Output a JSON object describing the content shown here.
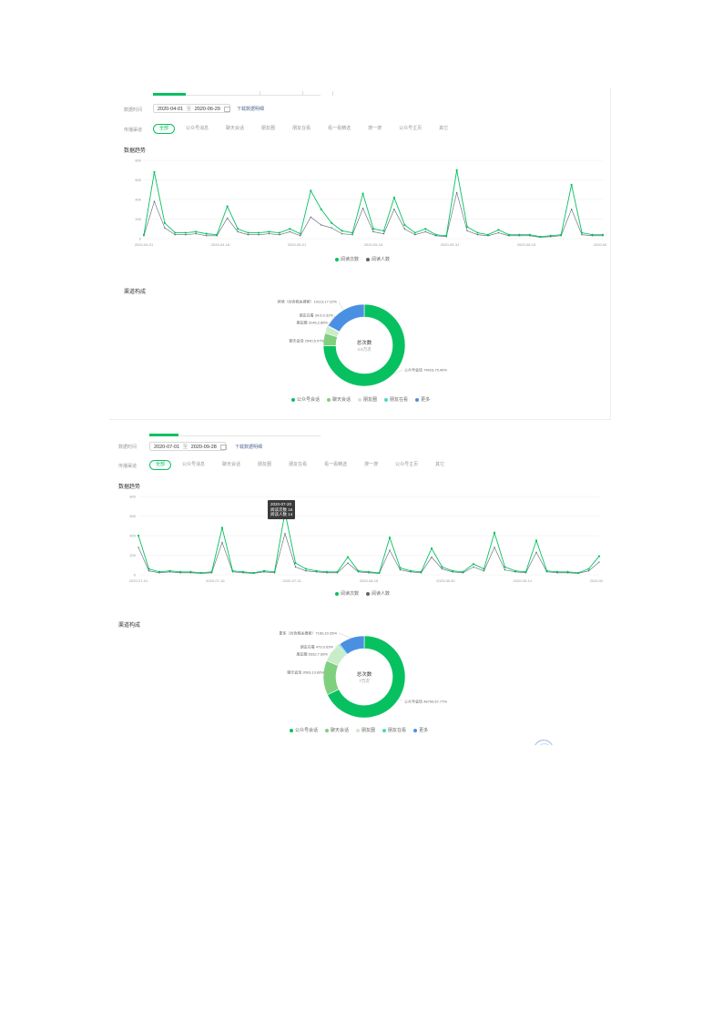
{
  "colors": {
    "accent": "#07c160",
    "line_pv": "#07c160",
    "line_uv": "#5a6476",
    "donut_main": "#07c160",
    "donut_chat": "#7ed07e",
    "donut_moments": "#c9ecc9",
    "donut_ms": "#4dd6c6",
    "donut_more": "#4a90e2",
    "link": "#576b95"
  },
  "icons": {
    "calendar": "calendar-icon",
    "float": "floating-help-icon"
  },
  "panels": [
    {
      "time_label": "数据时间",
      "date_start": "2020-04-01",
      "date_sep": "至",
      "date_end": "2020-06-29",
      "download": "下载数据明细",
      "channel_label": "传播渠道",
      "channels": [
        "全部",
        "公众号消息",
        "聊天会话",
        "朋友圈",
        "朋友在看",
        "看一看精选",
        "搜一搜",
        "公众号主页",
        "其它"
      ],
      "trend_title": "数据趋势",
      "legend": [
        "阅读次数",
        "阅读人数"
      ],
      "channel_title": "渠道构成",
      "donut_center_title": "总次数",
      "donut_center_value": "4.6万次",
      "donut_labels": [
        "其他（共含相关搜索）10113,17.22%",
        "朋友在看 34.6,0.32%",
        "朋友圈 3146,2.86%",
        "聊天会话 2540,5.07%",
        "公众号会话 74923,75.49%"
      ],
      "donut_legend": [
        "公众号会话",
        "聊天会话",
        "朋友圈",
        "朋友在看",
        "更多"
      ]
    },
    {
      "time_label": "数据时间",
      "date_start": "2020-07-01",
      "date_sep": "至",
      "date_end": "2020-09-28",
      "download": "下载数据明细",
      "channel_label": "传播渠道",
      "channels": [
        "全部",
        "公众号消息",
        "聊天会话",
        "朋友圈",
        "朋友在看",
        "看一看精选",
        "搜一搜",
        "公众号主页",
        "其它"
      ],
      "trend_title": "数据趋势",
      "legend": [
        "阅读次数",
        "阅读人数"
      ],
      "channel_title": "渠道构成",
      "donut_center_title": "总次数",
      "donut_center_value": "7万次",
      "donut_labels": [
        "更多（共含相关搜索）7160,10.26%",
        "朋友在看 473,0.63%",
        "朋友圈 5332,7.66%",
        "聊天会话 9503,13.66%",
        "公众号会话 48750,67.77%"
      ],
      "donut_legend": [
        "公众号会话",
        "聊天会话",
        "朋友圈",
        "朋友在看",
        "更多"
      ],
      "tooltip": {
        "date": "2020-07-20",
        "pv": "阅读次数 16",
        "uv": "阅读人数 14"
      }
    }
  ],
  "chart_data": [
    {
      "type": "line",
      "x": [
        "2020-04-01",
        "2020-04-03",
        "2020-04-05",
        "2020-04-07",
        "2020-04-09",
        "2020-04-11",
        "2020-04-13",
        "2020-04-15",
        "2020-04-17",
        "2020-04-19",
        "2020-04-21",
        "2020-04-23",
        "2020-04-25",
        "2020-04-27",
        "2020-04-29",
        "2020-05-01",
        "2020-05-03",
        "2020-05-05",
        "2020-05-07",
        "2020-05-09",
        "2020-05-11",
        "2020-05-13",
        "2020-05-15",
        "2020-05-17",
        "2020-05-19",
        "2020-05-21",
        "2020-05-23",
        "2020-05-25",
        "2020-05-27",
        "2020-05-29",
        "2020-05-31",
        "2020-06-02",
        "2020-06-04",
        "2020-06-06",
        "2020-06-08",
        "2020-06-10",
        "2020-06-12",
        "2020-06-14",
        "2020-06-16",
        "2020-06-18",
        "2020-06-20",
        "2020-06-22",
        "2020-06-24",
        "2020-06-26",
        "2020-06-28"
      ],
      "x_ticks": [
        "2020-04-01",
        "2020-04-16",
        "2020-05-01",
        "2020-05-16",
        "2020-05-31",
        "2020-06-15",
        "2020-06-30"
      ],
      "ylim": [
        0,
        800
      ],
      "y_ticks": [
        0,
        200,
        400,
        600,
        800
      ],
      "series": [
        {
          "name": "阅读次数",
          "values": [
            40,
            680,
            160,
            60,
            60,
            70,
            50,
            40,
            330,
            100,
            60,
            60,
            70,
            60,
            100,
            50,
            490,
            300,
            160,
            80,
            60,
            460,
            100,
            80,
            420,
            140,
            60,
            100,
            40,
            30,
            700,
            120,
            60,
            40,
            90,
            40,
            40,
            40,
            20,
            30,
            40,
            550,
            60,
            40,
            40
          ]
        },
        {
          "name": "阅读人数",
          "values": [
            30,
            380,
            110,
            40,
            40,
            50,
            30,
            30,
            210,
            70,
            40,
            40,
            50,
            40,
            70,
            30,
            220,
            140,
            110,
            50,
            40,
            310,
            70,
            50,
            300,
            100,
            40,
            70,
            30,
            20,
            470,
            80,
            40,
            30,
            60,
            30,
            30,
            30,
            15,
            20,
            30,
            300,
            40,
            30,
            30
          ]
        }
      ]
    },
    {
      "type": "line",
      "x": [
        "2020-07-01",
        "2020-07-03",
        "2020-07-05",
        "2020-07-07",
        "2020-07-09",
        "2020-07-11",
        "2020-07-13",
        "2020-07-15",
        "2020-07-17",
        "2020-07-19",
        "2020-07-21",
        "2020-07-23",
        "2020-07-25",
        "2020-07-27",
        "2020-07-29",
        "2020-07-31",
        "2020-08-02",
        "2020-08-04",
        "2020-08-06",
        "2020-08-08",
        "2020-08-10",
        "2020-08-12",
        "2020-08-14",
        "2020-08-16",
        "2020-08-18",
        "2020-08-20",
        "2020-08-22",
        "2020-08-24",
        "2020-08-26",
        "2020-08-28",
        "2020-08-30",
        "2020-09-01",
        "2020-09-03",
        "2020-09-05",
        "2020-09-07",
        "2020-09-09",
        "2020-09-11",
        "2020-09-13",
        "2020-09-15",
        "2020-09-17",
        "2020-09-19",
        "2020-09-21",
        "2020-09-23",
        "2020-09-25",
        "2020-09-27"
      ],
      "x_ticks": [
        "2020-07-01",
        "2020-07-16",
        "2020-07-31",
        "2020-08-15",
        "2020-08-30",
        "2020-09-14",
        "2020-09-29"
      ],
      "ylim": [
        0,
        800
      ],
      "y_ticks": [
        0,
        200,
        400,
        600,
        800
      ],
      "series": [
        {
          "name": "阅读次数",
          "values": [
            400,
            60,
            30,
            40,
            30,
            30,
            20,
            30,
            480,
            40,
            30,
            20,
            40,
            30,
            640,
            120,
            60,
            40,
            30,
            30,
            180,
            40,
            30,
            20,
            380,
            70,
            40,
            30,
            270,
            80,
            40,
            30,
            110,
            60,
            430,
            80,
            40,
            30,
            350,
            40,
            30,
            30,
            20,
            60,
            190
          ]
        },
        {
          "name": "阅读人数",
          "values": [
            280,
            40,
            20,
            30,
            20,
            20,
            15,
            20,
            330,
            30,
            20,
            15,
            30,
            20,
            420,
            80,
            40,
            30,
            20,
            20,
            120,
            30,
            20,
            15,
            250,
            50,
            30,
            20,
            180,
            60,
            30,
            20,
            80,
            40,
            280,
            50,
            30,
            20,
            230,
            30,
            20,
            20,
            15,
            40,
            130
          ]
        }
      ]
    },
    {
      "type": "pie",
      "categories": [
        "公众号会话",
        "聊天会话",
        "朋友圈",
        "朋友在看",
        "更多"
      ],
      "values": [
        75.49,
        5.07,
        2.86,
        0.32,
        17.22
      ]
    },
    {
      "type": "pie",
      "categories": [
        "公众号会话",
        "聊天会话",
        "朋友圈",
        "朋友在看",
        "更多"
      ],
      "values": [
        67.77,
        13.66,
        7.66,
        0.63,
        10.26
      ]
    }
  ]
}
